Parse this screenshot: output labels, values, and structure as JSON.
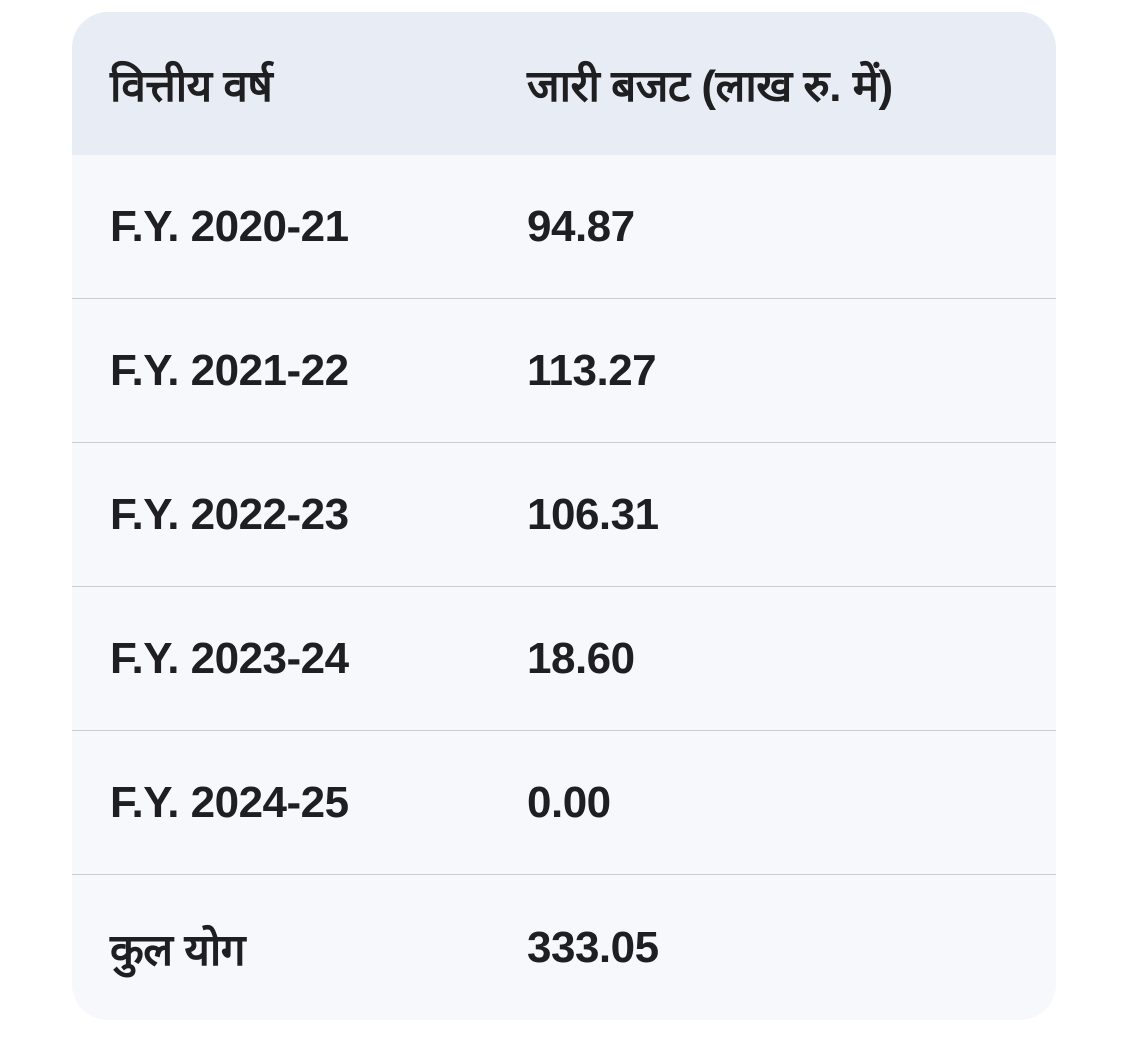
{
  "table": {
    "headers": [
      "वित्तीय वर्ष",
      "जारी बजट (लाख रु. में)"
    ],
    "rows": [
      {
        "year": "F.Y. 2020-21",
        "budget": "94.87"
      },
      {
        "year": "F.Y. 2021-22",
        "budget": "113.27"
      },
      {
        "year": "F.Y. 2022-23",
        "budget": "106.31"
      },
      {
        "year": "F.Y. 2023-24",
        "budget": "18.60"
      },
      {
        "year": "F.Y. 2024-25",
        "budget": "0.00"
      }
    ],
    "total": {
      "label": "कुल योग",
      "value": "333.05"
    }
  },
  "colors": {
    "header_bg": "#e8edf5",
    "body_bg": "#f6f8fc",
    "divider": "#c8cbd2",
    "text": "#1f1f22"
  }
}
